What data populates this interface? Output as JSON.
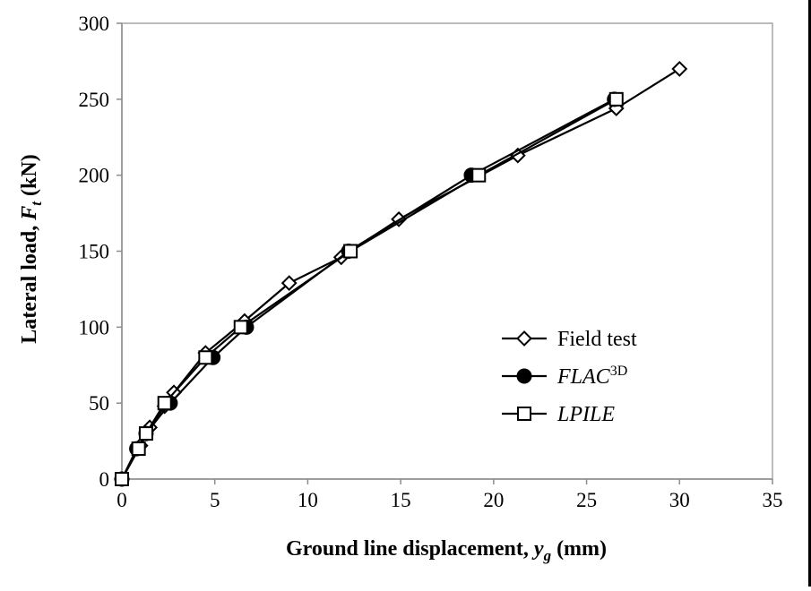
{
  "chart_data": {
    "type": "line",
    "xlabel_main": "Ground line displacement, ",
    "xlabel_var": "y",
    "xlabel_sub": "g",
    "xlabel_unit": " (mm)",
    "ylabel_main": "Lateral load, ",
    "ylabel_var": "F",
    "ylabel_sub": "t",
    "ylabel_unit": " (kN)",
    "xlim": [
      0,
      35
    ],
    "ylim": [
      0,
      300
    ],
    "x_ticks": [
      0,
      5,
      10,
      15,
      20,
      25,
      30,
      35
    ],
    "y_ticks": [
      0,
      50,
      100,
      150,
      200,
      250,
      300
    ],
    "x_tick_labels": [
      "0",
      "5",
      "10",
      "15",
      "20",
      "25",
      "30",
      "35"
    ],
    "y_tick_labels": [
      "0",
      "50",
      "100",
      "150",
      "200",
      "250",
      "300"
    ],
    "grid": false,
    "legend_position": "lower-right",
    "series": [
      {
        "name": "Field test",
        "marker": "diamond-open",
        "points": [
          [
            0.0,
            0
          ],
          [
            1.0,
            22
          ],
          [
            1.5,
            34
          ],
          [
            2.3,
            48
          ],
          [
            2.8,
            57
          ],
          [
            4.5,
            83
          ],
          [
            6.6,
            104
          ],
          [
            9.0,
            129
          ],
          [
            11.8,
            146
          ],
          [
            14.9,
            171
          ],
          [
            21.3,
            213
          ],
          [
            26.6,
            244
          ],
          [
            30.0,
            270
          ]
        ]
      },
      {
        "name": "FLAC",
        "name_sup": "3D",
        "marker": "circle-filled",
        "points": [
          [
            0.0,
            0
          ],
          [
            0.8,
            20
          ],
          [
            1.3,
            30
          ],
          [
            2.6,
            50
          ],
          [
            4.9,
            80
          ],
          [
            6.7,
            100
          ],
          [
            12.2,
            150
          ],
          [
            18.8,
            200
          ],
          [
            26.5,
            250
          ]
        ]
      },
      {
        "name": "LPILE",
        "marker": "square-open",
        "points": [
          [
            0.0,
            0
          ],
          [
            0.9,
            20
          ],
          [
            1.3,
            30
          ],
          [
            2.3,
            50
          ],
          [
            4.5,
            80
          ],
          [
            6.4,
            100
          ],
          [
            12.3,
            150
          ],
          [
            19.2,
            200
          ],
          [
            26.6,
            250
          ]
        ]
      }
    ]
  }
}
